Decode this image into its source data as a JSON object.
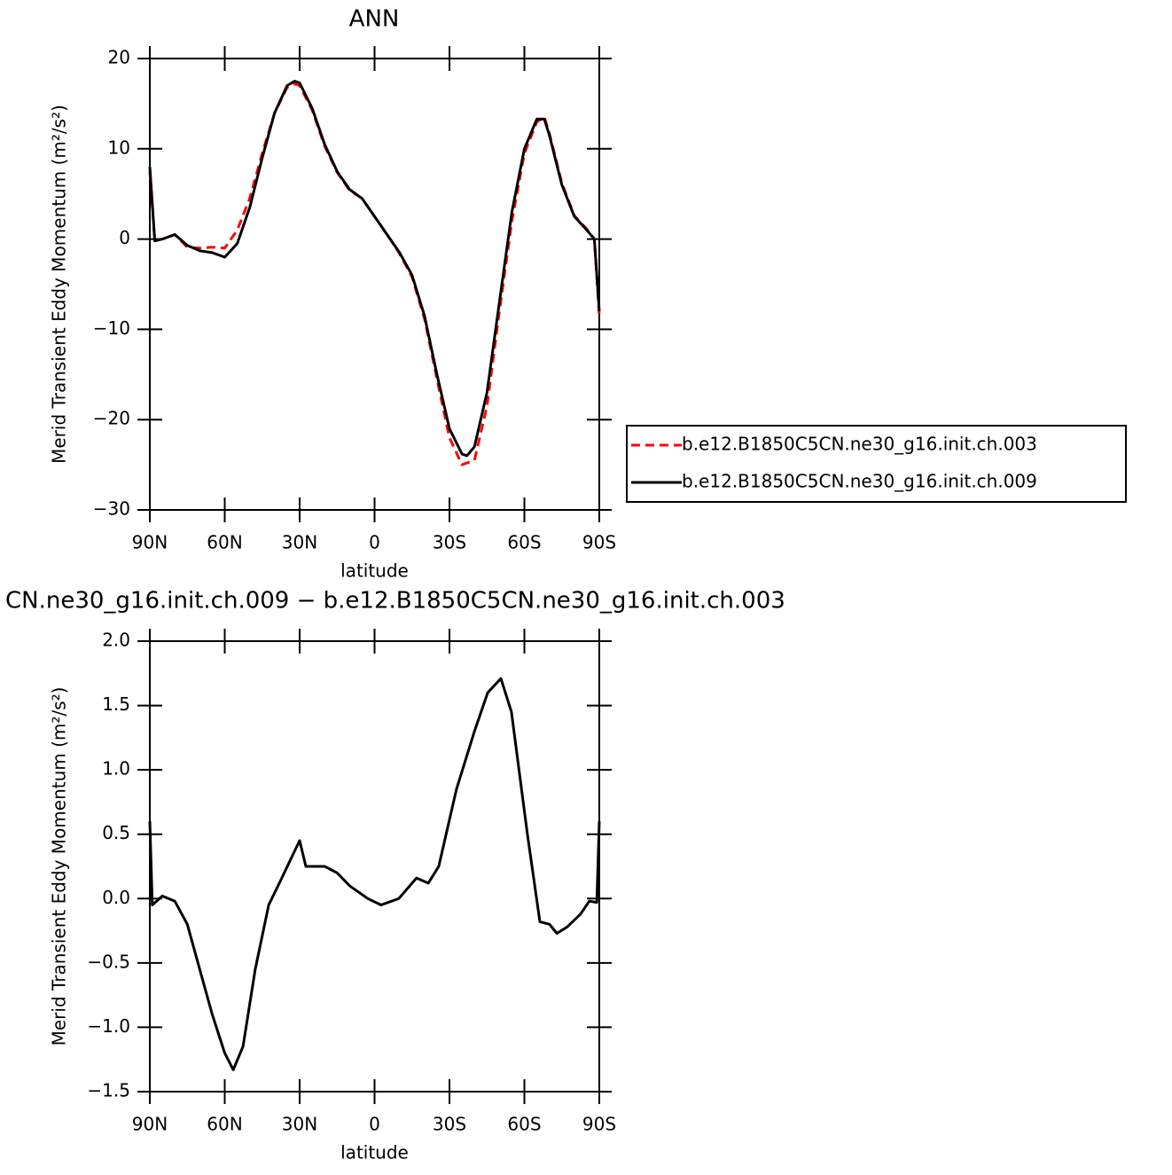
{
  "chart_data": [
    {
      "type": "line",
      "title": "ANN",
      "xlabel": "latitude",
      "ylabel": "Merid Transient Eddy Momentum (m²/s²)",
      "x": [
        90,
        88,
        85,
        80,
        75,
        70,
        65,
        60,
        55,
        50,
        45,
        40,
        35,
        32,
        30,
        25,
        20,
        15,
        10,
        5,
        0,
        -5,
        -10,
        -15,
        -20,
        -25,
        -30,
        -35,
        -37,
        -40,
        -45,
        -50,
        -55,
        -60,
        -65,
        -68,
        -70,
        -75,
        -80,
        -85,
        -88,
        -90
      ],
      "series": [
        {
          "name": "b.e12.B1850C5CN.ne30_g16.init.ch.003",
          "color": "#ff0000",
          "line_style": "dashed",
          "values": [
            7.5,
            -0.2,
            0,
            0.5,
            -0.9,
            -1.0,
            -0.9,
            -1.0,
            1.0,
            4.5,
            9.5,
            14,
            16.8,
            17.2,
            17,
            14.3,
            10.3,
            7.4,
            5.4,
            4.5,
            2.5,
            0.5,
            -1.6,
            -4.2,
            -8.8,
            -15.5,
            -22,
            -25,
            -24.8,
            -24.5,
            -18.5,
            -8,
            2,
            9.5,
            13,
            13.5,
            11.7,
            6.2,
            2.6,
            1.1,
            0,
            -8.5
          ]
        },
        {
          "name": "b.e12.B1850C5CN.ne30_g16.init.ch.009",
          "color": "#000000",
          "line_style": "solid",
          "values": [
            8,
            -0.2,
            0,
            0.5,
            -0.7,
            -1.3,
            -1.5,
            -2.0,
            -0.5,
            3.5,
            9,
            14,
            17,
            17.5,
            17.3,
            14.5,
            10.5,
            7.5,
            5.5,
            4.5,
            2.5,
            0.5,
            -1.5,
            -4,
            -8.5,
            -15,
            -21,
            -23.8,
            -24,
            -23,
            -17,
            -7,
            3,
            10,
            13.3,
            13.3,
            11.5,
            6,
            2.5,
            1,
            0,
            -8
          ]
        }
      ],
      "xlim": [
        90,
        -90
      ],
      "xticks": [
        {
          "value": 90,
          "label": "90N"
        },
        {
          "value": 60,
          "label": "60N"
        },
        {
          "value": 30,
          "label": "30N"
        },
        0,
        {
          "value": -30,
          "label": "30S"
        },
        {
          "value": -60,
          "label": "60S"
        },
        {
          "value": -90,
          "label": "90S"
        }
      ],
      "ylim": [
        -30,
        20
      ],
      "yticks": [
        {
          "value": -30,
          "label": "−30"
        },
        {
          "value": -20,
          "label": "−20"
        },
        {
          "value": -10,
          "label": "−10"
        },
        0,
        10,
        20
      ],
      "legend": "right"
    },
    {
      "type": "line",
      "title": "CN.ne30_g16.init.ch.009 − b.e12.B1850C5CN.ne30_g16.init.ch.003",
      "xlabel": "latitude",
      "ylabel": "Merid Transient Eddy Momentum (m²/s²)",
      "x": [
        90,
        89,
        85,
        80,
        75,
        70,
        65,
        60,
        56.6,
        52.7,
        47.8,
        42.4,
        37.4,
        32.5,
        30,
        27.5,
        20,
        15,
        10,
        2.7,
        -2.6,
        -9.7,
        -16.8,
        -21.5,
        -25.7,
        -32.8,
        -40,
        -45.3,
        -50.6,
        -54.8,
        -61.2,
        -66.2,
        -70.1,
        -73,
        -77.2,
        -82.5,
        -86,
        -89,
        -90
      ],
      "values": [
        0.6,
        -0.05,
        0.02,
        -0.02,
        -0.2,
        -0.55,
        -0.9,
        -1.2,
        -1.33,
        -1.15,
        -0.55,
        -0.05,
        0.15,
        0.35,
        0.45,
        0.25,
        0.25,
        0.2,
        0.1,
        0.0,
        -0.05,
        0.0,
        0.16,
        0.12,
        0.25,
        0.85,
        1.3,
        1.6,
        1.71,
        1.45,
        0.5,
        -0.18,
        -0.2,
        -0.27,
        -0.22,
        -0.12,
        -0.02,
        -0.03,
        0.6
      ],
      "color": "#000000",
      "line_style": "solid",
      "xlim": [
        90,
        -90
      ],
      "xticks": [
        {
          "value": 90,
          "label": "90N"
        },
        {
          "value": 60,
          "label": "60N"
        },
        {
          "value": 30,
          "label": "30N"
        },
        0,
        {
          "value": -30,
          "label": "30S"
        },
        {
          "value": -60,
          "label": "60S"
        },
        {
          "value": -90,
          "label": "90S"
        }
      ],
      "ylim": [
        -1.5,
        2.0
      ],
      "yticks": [
        {
          "value": -1.5,
          "label": "−1.5"
        },
        {
          "value": -1.0,
          "label": "−1.0"
        },
        {
          "value": -0.5,
          "label": "−0.5"
        },
        {
          "value": 0,
          "label": "0.0"
        },
        0.5,
        {
          "value": 1.0,
          "label": "1.0"
        },
        1.5,
        {
          "value": 2.0,
          "label": "2.0"
        }
      ]
    }
  ]
}
